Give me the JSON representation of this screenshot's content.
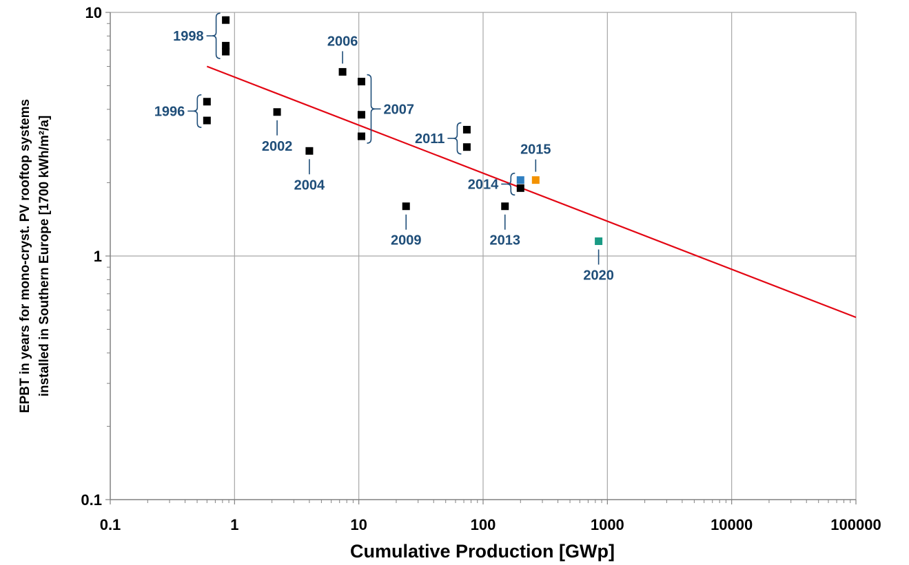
{
  "chart_data": {
    "type": "scatter",
    "xscale": "log",
    "yscale": "log",
    "xlim": [
      0.1,
      100000
    ],
    "ylim": [
      0.1,
      10
    ],
    "grid": true,
    "xlabel": "Cumulative Production [GWp]",
    "ylabel_lines": [
      "EPBT in years for mono-cryst. PV rooftop systems",
      "installed in Southern Europe  [1700 kWh/m²/a]"
    ],
    "x_ticks": [
      {
        "value": 0.1,
        "label": "0.1"
      },
      {
        "value": 1,
        "label": "1"
      },
      {
        "value": 10,
        "label": "10"
      },
      {
        "value": 100,
        "label": "100"
      },
      {
        "value": 1000,
        "label": "1000"
      },
      {
        "value": 10000,
        "label": "10000"
      },
      {
        "value": 100000,
        "label": "100000"
      }
    ],
    "y_ticks": [
      {
        "value": 0.1,
        "label": "0.1"
      },
      {
        "value": 1,
        "label": "1"
      },
      {
        "value": 10,
        "label": "10"
      }
    ],
    "points": [
      {
        "year": "1996",
        "x": 0.6,
        "y": 4.3,
        "color": "#000000"
      },
      {
        "year": "1996",
        "x": 0.6,
        "y": 3.6,
        "color": "#000000"
      },
      {
        "year": "1998",
        "x": 0.85,
        "y": 9.3,
        "color": "#000000"
      },
      {
        "year": "1998",
        "x": 0.85,
        "y": 7.3,
        "color": "#000000"
      },
      {
        "year": "1998",
        "x": 0.85,
        "y": 6.9,
        "color": "#000000"
      },
      {
        "year": "2002",
        "x": 2.2,
        "y": 3.9,
        "color": "#000000"
      },
      {
        "year": "2004",
        "x": 4.0,
        "y": 2.7,
        "color": "#000000"
      },
      {
        "year": "2006",
        "x": 7.4,
        "y": 5.7,
        "color": "#000000"
      },
      {
        "year": "2007",
        "x": 10.5,
        "y": 5.2,
        "color": "#000000"
      },
      {
        "year": "2007",
        "x": 10.5,
        "y": 3.8,
        "color": "#000000"
      },
      {
        "year": "2007",
        "x": 10.5,
        "y": 3.1,
        "color": "#000000"
      },
      {
        "year": "2009",
        "x": 24,
        "y": 1.6,
        "color": "#000000"
      },
      {
        "year": "2011",
        "x": 74,
        "y": 3.3,
        "color": "#000000"
      },
      {
        "year": "2011",
        "x": 74,
        "y": 2.8,
        "color": "#000000"
      },
      {
        "year": "2013",
        "x": 150,
        "y": 1.6,
        "color": "#000000"
      },
      {
        "year": "2014",
        "x": 200,
        "y": 2.05,
        "color": "#2f7fc1"
      },
      {
        "year": "2014",
        "x": 200,
        "y": 1.9,
        "color": "#000000"
      },
      {
        "year": "2015",
        "x": 265,
        "y": 2.05,
        "color": "#f39200"
      },
      {
        "year": "2020",
        "x": 850,
        "y": 1.15,
        "color": "#1a9a84"
      }
    ],
    "year_labels": [
      {
        "text": "1996",
        "bracket": true,
        "ymin": 3.6,
        "ymax": 4.3,
        "x": 0.6,
        "side": "left"
      },
      {
        "text": "1998",
        "bracket": true,
        "ymin": 6.9,
        "ymax": 9.3,
        "x": 0.85,
        "side": "left"
      },
      {
        "text": "2002",
        "bracket": false,
        "x": 2.2,
        "y": 3.9,
        "side": "below"
      },
      {
        "text": "2004",
        "bracket": false,
        "x": 4.0,
        "y": 2.7,
        "side": "below"
      },
      {
        "text": "2006",
        "bracket": false,
        "x": 7.4,
        "y": 5.7,
        "side": "above"
      },
      {
        "text": "2007",
        "bracket": true,
        "ymin": 3.1,
        "ymax": 5.2,
        "x": 10.5,
        "side": "right"
      },
      {
        "text": "2009",
        "bracket": false,
        "x": 24,
        "y": 1.6,
        "side": "below"
      },
      {
        "text": "2011",
        "bracket": true,
        "ymin": 2.8,
        "ymax": 3.3,
        "x": 74,
        "side": "left"
      },
      {
        "text": "2013",
        "bracket": false,
        "x": 150,
        "y": 1.6,
        "side": "below"
      },
      {
        "text": "2014",
        "bracket": true,
        "ymin": 1.9,
        "ymax": 2.05,
        "x": 200,
        "side": "left"
      },
      {
        "text": "2015",
        "bracket": false,
        "x": 265,
        "y": 2.05,
        "side": "above"
      },
      {
        "text": "2020",
        "bracket": false,
        "x": 850,
        "y": 1.15,
        "side": "below"
      }
    ],
    "trendline": {
      "x_start": 0.6,
      "y_start": 6.0,
      "x_end": 100000,
      "y_end": 0.56,
      "color": "#e30613"
    },
    "colors": {
      "label_text": "#1f4e79",
      "grid": "#a6a6a6",
      "axis": "#808080"
    }
  }
}
